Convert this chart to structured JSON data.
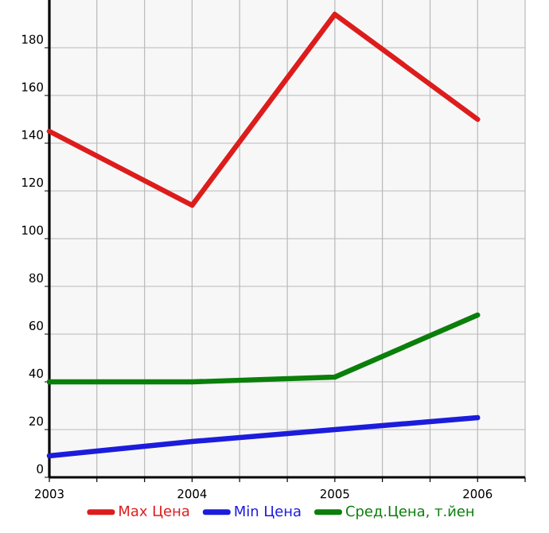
{
  "chart_data": {
    "type": "line",
    "x": [
      2003,
      2004,
      2005,
      2006
    ],
    "series": [
      {
        "name": "Max Цена",
        "color": "#dd1c1c",
        "values": [
          145,
          114,
          194,
          150
        ]
      },
      {
        "name": "Min Цена",
        "color": "#1c1cdd",
        "values": [
          9,
          15,
          20,
          25
        ]
      },
      {
        "name": "Сред.Цена, т.йен",
        "color": "#0a7f0a",
        "values": [
          40,
          40,
          42,
          68
        ]
      }
    ],
    "xlim": [
      2003,
      2006.333
    ],
    "xticks": [
      2003,
      {
        "value": 2003.333,
        "label": null
      },
      {
        "value": 2003.667,
        "label": null
      },
      2004,
      {
        "value": 2004.333,
        "label": null
      },
      {
        "value": 2004.667,
        "label": null
      },
      2005,
      {
        "value": 2005.333,
        "label": null
      },
      {
        "value": 2005.667,
        "label": null
      },
      2006,
      {
        "value": 2006.333,
        "label": null
      }
    ],
    "ylim": [
      0,
      200
    ],
    "yticks": [
      0,
      20,
      40,
      60,
      80,
      100,
      120,
      140,
      160,
      180
    ],
    "grid": true,
    "legend": "bottom",
    "marker": "none",
    "line_style": "solid"
  }
}
